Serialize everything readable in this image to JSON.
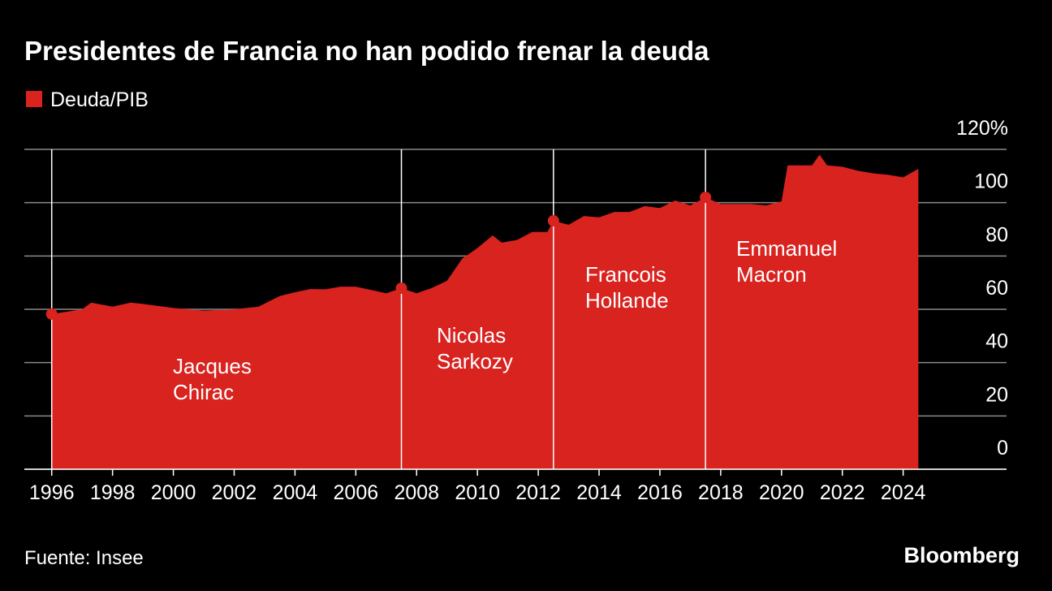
{
  "chart_data": {
    "type": "area",
    "title": "Presidentes de Francia no han podido frenar la deuda",
    "source": "Fuente: Insee",
    "brand": "Bloomberg",
    "x": [
      1996,
      1997,
      1997.3,
      1998,
      1998.6,
      1999,
      2000,
      2001,
      2002,
      2002.8,
      2003.5,
      2004,
      2004.5,
      2005,
      2005.5,
      2006,
      2007,
      2007.5,
      2008,
      2008.5,
      2009,
      2009.5,
      2010,
      2010.5,
      2010.8,
      2011.3,
      2011.8,
      2012.3,
      2012.5,
      2013,
      2013.5,
      2014,
      2014.5,
      2015,
      2015.5,
      2016,
      2016.5,
      2017,
      2017.5,
      2018,
      2019,
      2019.5,
      2020,
      2020.2,
      2020.5,
      2021,
      2021.25,
      2021.5,
      2022,
      2022.5,
      2023,
      2023.5,
      2024,
      2024.5
    ],
    "series": [
      {
        "name": "Deuda/PIB",
        "color": "#d8231f",
        "values": [
          58.2,
          60,
          62.5,
          61,
          62.5,
          62,
          60.5,
          59.5,
          60,
          61,
          65,
          66.4,
          67.6,
          67.5,
          68.5,
          68.5,
          66,
          67.9,
          66,
          68,
          70.7,
          79,
          83,
          87.7,
          85,
          86,
          89,
          89,
          93.2,
          91.7,
          95,
          94.5,
          96.5,
          96.5,
          98.7,
          98,
          100.8,
          99,
          102,
          99.5,
          99.5,
          99,
          100.5,
          114,
          114,
          114,
          118,
          114,
          113.5,
          112,
          111,
          110.5,
          109.5,
          112.7
        ]
      }
    ],
    "annotations": [
      {
        "x": 1996,
        "label": [
          "Jacques",
          "Chirac"
        ]
      },
      {
        "x": 2007.5,
        "label": [
          "Nicolas",
          "Sarkozy"
        ]
      },
      {
        "x": 2012.5,
        "label": [
          "Francois",
          "Hollande"
        ]
      },
      {
        "x": 2017.5,
        "label": [
          "Emmanuel",
          "Macron"
        ]
      }
    ],
    "xlim": [
      1995.1,
      2027.4
    ],
    "xticks": [
      1996,
      1998,
      2000,
      2002,
      2004,
      2006,
      2008,
      2010,
      2012,
      2014,
      2016,
      2018,
      2020,
      2022,
      2024
    ],
    "ylim": [
      0,
      120
    ],
    "yticks": [
      0,
      20,
      40,
      60,
      80,
      100,
      {
        "value": 120,
        "label": "120%"
      }
    ],
    "grid": true
  }
}
